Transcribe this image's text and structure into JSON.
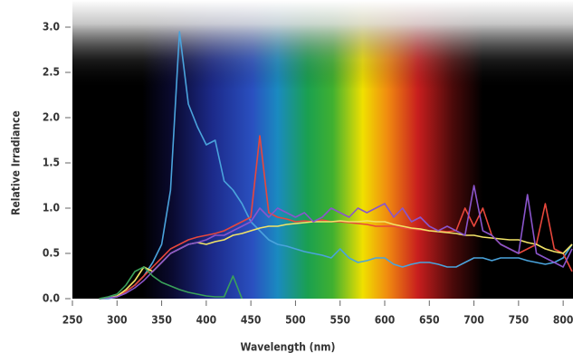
{
  "chart_data": {
    "type": "line",
    "xlabel": "Wavelength (nm)",
    "ylabel": "Relative Irradiance",
    "xlim": [
      250,
      810
    ],
    "ylim": [
      0,
      3
    ],
    "xticks": [
      250,
      300,
      350,
      400,
      450,
      500,
      550,
      600,
      650,
      700,
      750,
      800
    ],
    "yticks": [
      {
        "value": 0,
        "label": "0.0"
      },
      0.5,
      {
        "value": 1,
        "label": "1.0"
      },
      1.5,
      {
        "value": 2,
        "label": "2.0"
      },
      2.5,
      {
        "value": 3,
        "label": "3.0"
      }
    ],
    "x": [
      280,
      290,
      300,
      310,
      320,
      330,
      340,
      350,
      360,
      370,
      380,
      390,
      400,
      410,
      420,
      430,
      440,
      450,
      460,
      470,
      480,
      490,
      500,
      510,
      520,
      530,
      540,
      550,
      560,
      570,
      580,
      590,
      600,
      610,
      620,
      630,
      640,
      650,
      660,
      670,
      680,
      690,
      700,
      710,
      720,
      730,
      740,
      750,
      760,
      770,
      780,
      790,
      800,
      810
    ],
    "series": [
      {
        "color": "#4aa3dc",
        "values": [
          0,
          0,
          0.02,
          0.08,
          0.15,
          0.25,
          0.4,
          0.6,
          1.2,
          2.95,
          2.15,
          1.9,
          1.7,
          1.75,
          1.3,
          1.2,
          1.05,
          0.85,
          0.75,
          0.65,
          0.6,
          0.58,
          0.55,
          0.52,
          0.5,
          0.48,
          0.45,
          0.55,
          0.45,
          0.4,
          0.42,
          0.45,
          0.45,
          0.38,
          0.35,
          0.38,
          0.4,
          0.4,
          0.38,
          0.35,
          0.35,
          0.4,
          0.45,
          0.45,
          0.42,
          0.45,
          0.45,
          0.45,
          0.42,
          0.4,
          0.38,
          0.4,
          0.45,
          0.6
        ]
      },
      {
        "color": "#e8473c",
        "values": [
          0,
          0.01,
          0.02,
          0.08,
          0.15,
          0.25,
          0.35,
          0.45,
          0.55,
          0.6,
          0.65,
          0.68,
          0.7,
          0.72,
          0.75,
          0.8,
          0.85,
          0.9,
          1.8,
          0.95,
          0.9,
          0.88,
          0.85,
          0.86,
          0.85,
          0.87,
          0.85,
          0.85,
          0.84,
          0.83,
          0.82,
          0.8,
          0.8,
          0.8,
          0.78,
          0.77,
          0.76,
          0.75,
          0.75,
          0.74,
          0.75,
          1.0,
          0.8,
          1.0,
          0.7,
          0.6,
          0.55,
          0.5,
          0.55,
          0.6,
          1.05,
          0.55,
          0.5,
          0.3
        ]
      },
      {
        "color": "#f2e468",
        "values": [
          0,
          0.01,
          0.03,
          0.1,
          0.2,
          0.35,
          0.3,
          0.4,
          0.5,
          0.55,
          0.6,
          0.62,
          0.6,
          0.63,
          0.65,
          0.7,
          0.72,
          0.75,
          0.78,
          0.8,
          0.8,
          0.82,
          0.83,
          0.84,
          0.85,
          0.85,
          0.85,
          0.86,
          0.85,
          0.85,
          0.86,
          0.85,
          0.85,
          0.82,
          0.8,
          0.78,
          0.77,
          0.75,
          0.74,
          0.73,
          0.72,
          0.7,
          0.7,
          0.68,
          0.67,
          0.66,
          0.65,
          0.65,
          0.62,
          0.6,
          0.55,
          0.52,
          0.5,
          0.6
        ]
      },
      {
        "color": "#8a55cc",
        "values": [
          0,
          0.01,
          0.02,
          0.06,
          0.12,
          0.2,
          0.3,
          0.4,
          0.5,
          0.55,
          0.6,
          0.62,
          0.65,
          0.7,
          0.7,
          0.75,
          0.8,
          0.85,
          1.0,
          0.9,
          1.0,
          0.95,
          0.9,
          0.95,
          0.85,
          0.9,
          1.0,
          0.95,
          0.9,
          1.0,
          0.95,
          1.0,
          1.05,
          0.9,
          1.0,
          0.85,
          0.9,
          0.8,
          0.75,
          0.8,
          0.75,
          0.7,
          1.25,
          0.75,
          0.7,
          0.6,
          0.55,
          0.5,
          1.15,
          0.5,
          0.45,
          0.4,
          0.35,
          0.55
        ]
      },
      {
        "color": "#3aa15a",
        "values": [
          0,
          0.02,
          0.05,
          0.15,
          0.3,
          0.35,
          0.25,
          0.18,
          0.14,
          0.1,
          0.07,
          0.05,
          0.03,
          0.02,
          0.02,
          0.25,
          0,
          null,
          null,
          null,
          null,
          null,
          null,
          null,
          null,
          null,
          null,
          null,
          null,
          null,
          null,
          null,
          null,
          null,
          null,
          null,
          null,
          null,
          null,
          null,
          null,
          null,
          null,
          null,
          null,
          null,
          null,
          null,
          null,
          null,
          null,
          null,
          null,
          null
        ]
      }
    ]
  }
}
